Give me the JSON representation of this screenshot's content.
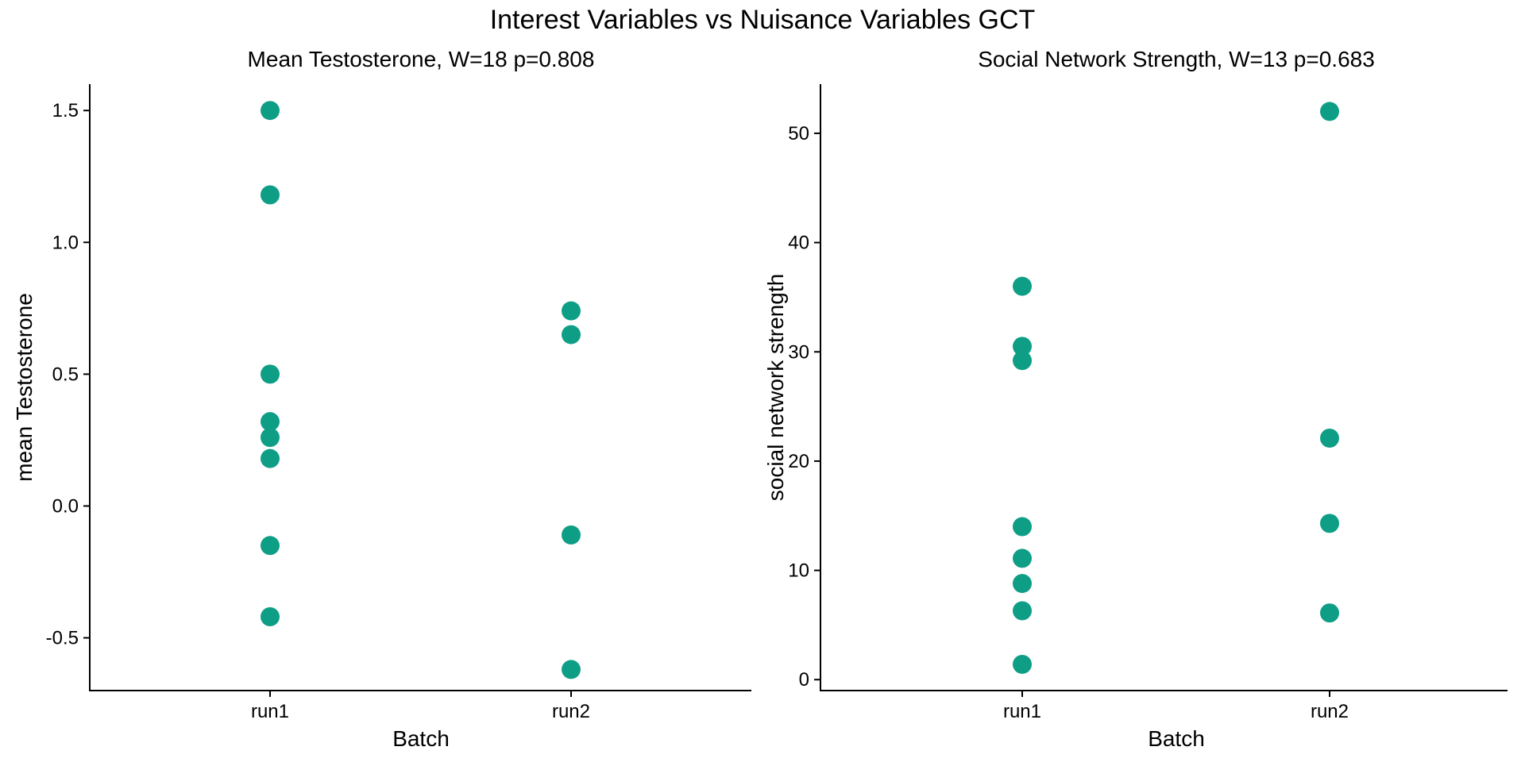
{
  "figure_title": "Interest Variables vs Nuisance Variables GCT",
  "colors": {
    "point": "#0E9E86",
    "axis": "#000000",
    "background": "#FFFFFF"
  },
  "chart_data": [
    {
      "type": "scatter",
      "title": "Mean Testosterone, W=18 p=0.808",
      "xlabel": "Batch",
      "ylabel": "mean Testosterone",
      "categories": [
        "run1",
        "run2"
      ],
      "ylim": [
        -0.7,
        1.6
      ],
      "yticks": [
        -0.5,
        0.0,
        0.5,
        1.0,
        1.5
      ],
      "ytick_labels": [
        "-0.5",
        "0.0",
        "0.5",
        "1.0",
        "1.5"
      ],
      "grid": false,
      "legend": "none",
      "points": [
        {
          "x": "run1",
          "y": 1.5
        },
        {
          "x": "run1",
          "y": 1.18
        },
        {
          "x": "run1",
          "y": 0.5
        },
        {
          "x": "run1",
          "y": 0.32
        },
        {
          "x": "run1",
          "y": 0.26
        },
        {
          "x": "run1",
          "y": 0.18
        },
        {
          "x": "run1",
          "y": -0.15
        },
        {
          "x": "run1",
          "y": -0.42
        },
        {
          "x": "run2",
          "y": 0.74
        },
        {
          "x": "run2",
          "y": 0.65
        },
        {
          "x": "run2",
          "y": -0.11
        },
        {
          "x": "run2",
          "y": -0.62
        }
      ]
    },
    {
      "type": "scatter",
      "title": "Social Network Strength, W=13 p=0.683",
      "xlabel": "Batch",
      "ylabel": "social network strength",
      "categories": [
        "run1",
        "run2"
      ],
      "ylim": [
        -1,
        54.5
      ],
      "yticks": [
        0,
        10,
        20,
        30,
        40,
        50
      ],
      "ytick_labels": [
        "0",
        "10",
        "20",
        "30",
        "40",
        "50"
      ],
      "grid": false,
      "legend": "none",
      "points": [
        {
          "x": "run1",
          "y": 36.0
        },
        {
          "x": "run1",
          "y": 30.5
        },
        {
          "x": "run1",
          "y": 29.2
        },
        {
          "x": "run1",
          "y": 14.0
        },
        {
          "x": "run1",
          "y": 11.1
        },
        {
          "x": "run1",
          "y": 8.8
        },
        {
          "x": "run1",
          "y": 6.3
        },
        {
          "x": "run1",
          "y": 1.4
        },
        {
          "x": "run2",
          "y": 52.0
        },
        {
          "x": "run2",
          "y": 22.1
        },
        {
          "x": "run2",
          "y": 14.3
        },
        {
          "x": "run2",
          "y": 6.1
        }
      ]
    }
  ]
}
